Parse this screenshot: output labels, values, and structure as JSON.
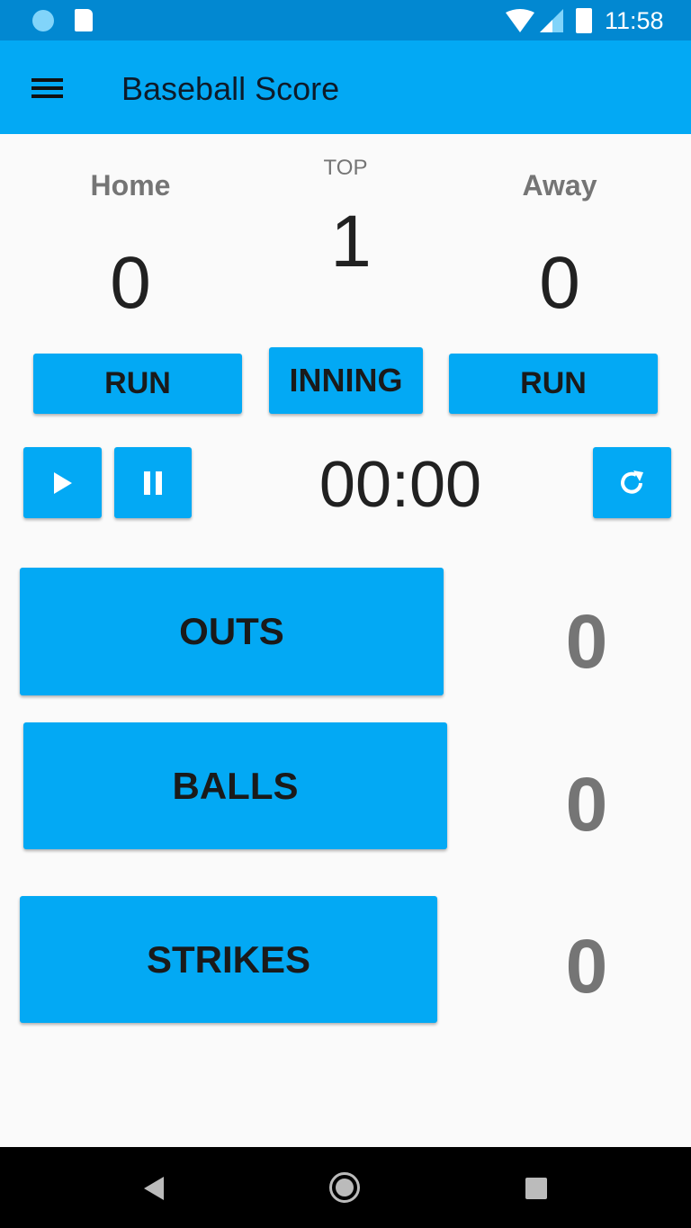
{
  "status_bar": {
    "time": "11:58"
  },
  "app_bar": {
    "title": "Baseball Score"
  },
  "scoreboard": {
    "home": {
      "label": "Home",
      "score": "0",
      "button": "RUN"
    },
    "inning": {
      "half": "TOP",
      "number": "1",
      "button": "INNING"
    },
    "away": {
      "label": "Away",
      "score": "0",
      "button": "RUN"
    }
  },
  "timer": {
    "value": "00:00"
  },
  "counts": [
    {
      "label": "OUTS",
      "value": "0"
    },
    {
      "label": "BALLS",
      "value": "0"
    },
    {
      "label": "STRIKES",
      "value": "0"
    }
  ],
  "colors": {
    "primary": "#03a9f4",
    "primary_dark": "#0288d1"
  }
}
